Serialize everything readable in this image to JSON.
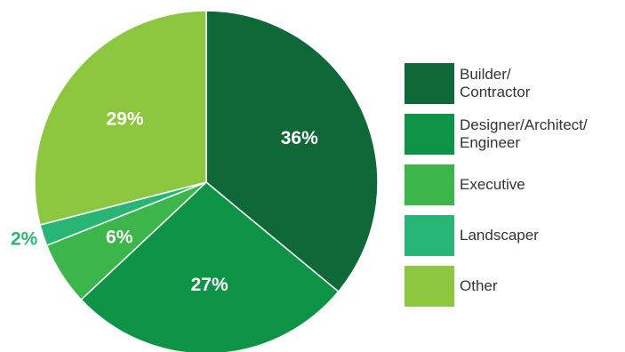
{
  "chart_data": {
    "type": "pie",
    "categories": [
      "Builder/ Contractor",
      "Designer/Architect/ Engineer",
      "Executive",
      "Landscaper",
      "Other"
    ],
    "values": [
      36,
      27,
      6,
      2,
      29
    ],
    "labels": [
      "36%",
      "27%",
      "6%",
      "2%",
      "29%"
    ],
    "colors": [
      "#0e6838",
      "#0f9447",
      "#3cb54a",
      "#28b677",
      "#8dc63f"
    ],
    "legend_position": "right",
    "start_angle": "top",
    "direction": "clockwise"
  },
  "legend": {
    "items": [
      {
        "label": "Builder/\nContractor",
        "color": "#0e6838"
      },
      {
        "label": "Designer/Architect/\nEngineer",
        "color": "#0f9447"
      },
      {
        "label": "Executive",
        "color": "#3cb54a"
      },
      {
        "label": "Landscaper",
        "color": "#28b677"
      },
      {
        "label": "Other",
        "color": "#8dc63f"
      }
    ]
  }
}
